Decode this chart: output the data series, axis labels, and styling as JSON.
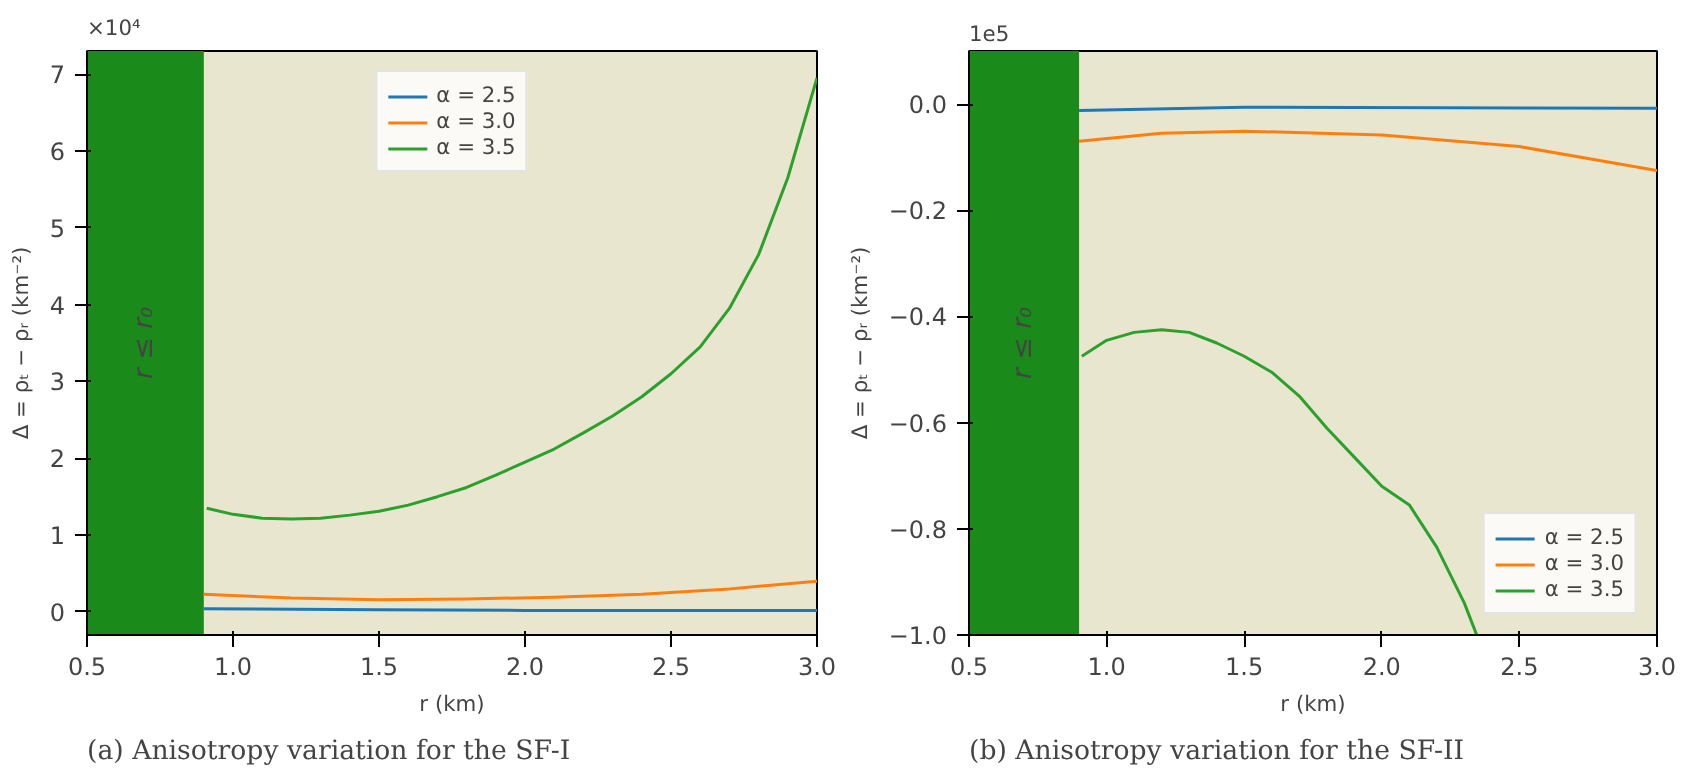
{
  "chart_data": [
    {
      "type": "line",
      "title": "(a) Anisotropy variation for the SF-I",
      "xlabel": "r (km)",
      "ylabel": "Δ = ρₜ − ρᵣ (km⁻²)",
      "annotations": [
        "×10⁴"
      ],
      "xlim": [
        0.5,
        3.0
      ],
      "xticks": [
        {
          "value": 0.5,
          "label": "0.5"
        },
        {
          "value": 1.0,
          "label": "1.0"
        },
        {
          "value": 1.5,
          "label": "1.5"
        },
        {
          "value": 2.0,
          "label": "2.0"
        },
        {
          "value": 2.5,
          "label": "2.5"
        },
        {
          "value": 3.0,
          "label": "3.0"
        }
      ],
      "ylim": [
        -0.3,
        7.3
      ],
      "yticks": [
        0,
        1,
        2,
        3,
        4,
        5,
        6,
        7
      ],
      "grid": false,
      "legend": "top",
      "bands": [
        {
          "axis": "x",
          "from": 0.5,
          "to": 0.9,
          "label": "r ≤ r₀",
          "color": "#1a8a1a"
        }
      ],
      "series": [
        {
          "name": "α = 2.5",
          "color": "#1f77b4",
          "x": [
            0.9,
            1.5,
            2.0,
            3.0
          ],
          "values": [
            0.04,
            0.03,
            0.02,
            0.02
          ]
        },
        {
          "name": "α = 3.0",
          "color": "#ff7f0e",
          "x": [
            0.9,
            1.2,
            1.5,
            1.8,
            2.1,
            2.4,
            2.7,
            3.0
          ],
          "values": [
            0.23,
            0.18,
            0.16,
            0.17,
            0.19,
            0.23,
            0.3,
            0.4
          ]
        },
        {
          "name": "α = 3.5",
          "color": "#2ca02c",
          "x": [
            0.91,
            1.0,
            1.1,
            1.2,
            1.3,
            1.4,
            1.5,
            1.6,
            1.7,
            1.8,
            1.9,
            2.0,
            2.1,
            2.2,
            2.3,
            2.4,
            2.5,
            2.6,
            2.7,
            2.8,
            2.9,
            3.0
          ],
          "values": [
            1.35,
            1.27,
            1.22,
            1.21,
            1.22,
            1.26,
            1.31,
            1.39,
            1.5,
            1.62,
            1.78,
            1.95,
            2.12,
            2.33,
            2.55,
            2.8,
            3.1,
            3.45,
            3.95,
            4.65,
            5.65,
            6.95
          ]
        }
      ]
    },
    {
      "type": "line",
      "title": "(b) Anisotropy variation for the SF-II",
      "xlabel": "r (km)",
      "ylabel": "Δ = ρₜ − ρᵣ (km⁻²)",
      "annotations": [
        "1e5"
      ],
      "xlim": [
        0.5,
        3.0
      ],
      "xticks": [
        {
          "value": 0.5,
          "label": "0.5"
        },
        {
          "value": 1.0,
          "label": "1.0"
        },
        {
          "value": 1.5,
          "label": "1.5"
        },
        {
          "value": 2.0,
          "label": "2.0"
        },
        {
          "value": 2.5,
          "label": "2.5"
        },
        {
          "value": 3.0,
          "label": "3.0"
        }
      ],
      "ylim": [
        -1.0,
        0.1
      ],
      "yticks": [
        {
          "value": 0,
          "label": "0.0"
        },
        {
          "value": -0.2,
          "label": "−0.2"
        },
        {
          "value": -0.4,
          "label": "−0.4"
        },
        {
          "value": -0.6,
          "label": "−0.6"
        },
        {
          "value": -0.8,
          "label": "−0.8"
        },
        {
          "value": -1.0,
          "label": "−1.0"
        }
      ],
      "grid": false,
      "legend": "bottom right",
      "bands": [
        {
          "axis": "x",
          "from": 0.5,
          "to": 0.9,
          "label": "r ≤ r₀",
          "color": "#1a8a1a"
        }
      ],
      "series": [
        {
          "name": "α = 2.5",
          "color": "#1f77b4",
          "x": [
            0.9,
            1.5,
            3.0
          ],
          "values": [
            -0.012,
            -0.006,
            -0.008
          ]
        },
        {
          "name": "α = 3.0",
          "color": "#ff7f0e",
          "x": [
            0.9,
            1.2,
            1.5,
            2.0,
            2.5,
            3.0
          ],
          "values": [
            -0.07,
            -0.055,
            -0.051,
            -0.058,
            -0.08,
            -0.125
          ]
        },
        {
          "name": "α = 3.5",
          "color": "#2ca02c",
          "x": [
            0.91,
            1.0,
            1.1,
            1.2,
            1.3,
            1.4,
            1.5,
            1.6,
            1.7,
            1.8,
            1.9,
            2.0,
            2.1,
            2.2,
            2.3,
            2.345
          ],
          "values": [
            -0.475,
            -0.445,
            -0.43,
            -0.425,
            -0.43,
            -0.45,
            -0.475,
            -0.505,
            -0.55,
            -0.61,
            -0.665,
            -0.72,
            -0.755,
            -0.835,
            -0.94,
            -1.0
          ]
        }
      ]
    }
  ]
}
